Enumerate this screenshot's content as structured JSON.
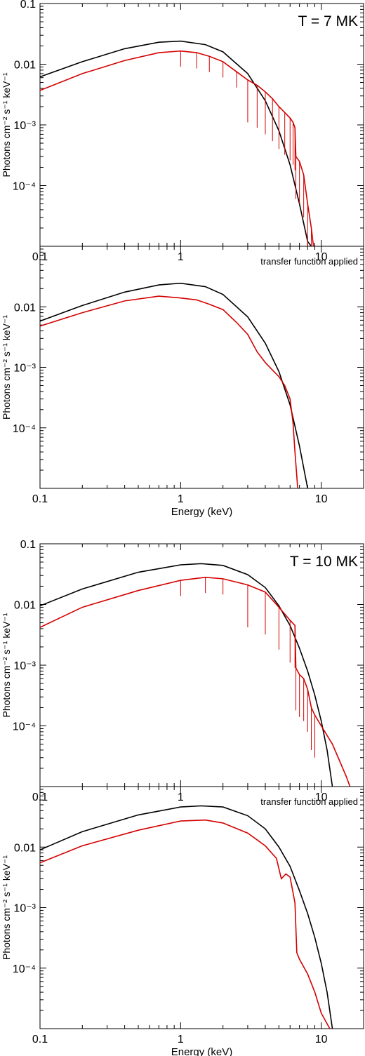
{
  "figure": {
    "xlabel": "Energy (keV)",
    "ylabel": "Photons cm⁻² s⁻¹ keV⁻¹",
    "colors": {
      "model": "#000000",
      "spectrum": "#d40000"
    }
  },
  "chart_data": [
    {
      "type": "line",
      "scale": "log-log",
      "xlim": [
        0.1,
        20
      ],
      "ylim": [
        1e-05,
        0.1
      ],
      "xticks": [
        "0.1",
        "1",
        "10"
      ],
      "yticks": [
        "0.1",
        "0.01",
        "10⁻³",
        "10⁻⁴"
      ],
      "annotation": "T = 7 MK",
      "xlabel": "",
      "ylabel": "Photons cm⁻² s⁻¹ keV⁻¹",
      "lines": true,
      "series": [
        {
          "role": "model",
          "x": [
            0.1,
            0.2,
            0.4,
            0.7,
            1.0,
            1.5,
            2.0,
            3.0,
            4.0,
            5.0,
            6.0,
            7.0,
            8.0,
            8.5
          ],
          "y": [
            0.0062,
            0.011,
            0.018,
            0.023,
            0.024,
            0.021,
            0.016,
            0.007,
            0.0025,
            0.0008,
            0.00022,
            5e-05,
            1.2e-05,
            1e-05
          ]
        },
        {
          "role": "spectrum",
          "x": [
            0.1,
            0.2,
            0.4,
            0.7,
            1.0,
            1.3,
            1.6,
            2.0,
            2.5,
            3.0,
            3.5,
            4.0,
            4.5,
            5.0,
            5.5,
            6.0,
            6.3,
            6.5,
            6.6,
            7.0,
            7.5,
            8.0,
            8.5,
            8.8
          ],
          "y": [
            0.0037,
            0.007,
            0.0115,
            0.0155,
            0.0165,
            0.0155,
            0.0135,
            0.011,
            0.0075,
            0.0055,
            0.0045,
            0.0035,
            0.0027,
            0.002,
            0.0016,
            0.0013,
            0.0011,
            0.0009,
            0.0003,
            0.00025,
            0.00015,
            5e-05,
            2e-05,
            1e-05
          ]
        }
      ]
    },
    {
      "type": "line",
      "scale": "log-log",
      "xlim": [
        0.1,
        20
      ],
      "ylim": [
        1e-05,
        0.1
      ],
      "xticks": [
        "0.1",
        "1",
        "10"
      ],
      "yticks": [
        "0.01",
        "10⁻³",
        "10⁻⁴"
      ],
      "annotation": "transfer function applied",
      "xlabel": "Energy (keV)",
      "ylabel": "Photons cm⁻² s⁻¹ keV⁻¹",
      "lines": false,
      "series": [
        {
          "role": "model",
          "x": [
            0.1,
            0.2,
            0.4,
            0.7,
            1.0,
            1.5,
            2.0,
            3.0,
            4.0,
            5.0,
            6.0,
            7.0,
            8.0
          ],
          "y": [
            0.0058,
            0.0105,
            0.0175,
            0.023,
            0.0245,
            0.0215,
            0.016,
            0.0068,
            0.0025,
            0.00085,
            0.00024,
            5e-05,
            1e-05
          ]
        },
        {
          "role": "spectrum",
          "x": [
            0.1,
            0.2,
            0.4,
            0.7,
            1.0,
            1.3,
            1.6,
            2.0,
            2.5,
            3.0,
            3.5,
            4.0,
            4.5,
            5.0,
            5.5,
            6.0,
            6.3,
            6.5,
            6.8
          ],
          "y": [
            0.0048,
            0.008,
            0.0125,
            0.015,
            0.014,
            0.013,
            0.011,
            0.009,
            0.0055,
            0.0035,
            0.0018,
            0.0012,
            0.0009,
            0.0007,
            0.0005,
            0.0003,
            0.00012,
            4e-05,
            1e-05
          ]
        }
      ]
    },
    {
      "type": "line",
      "scale": "log-log",
      "xlim": [
        0.1,
        20
      ],
      "ylim": [
        1e-05,
        0.1
      ],
      "xticks": [
        "0.1",
        "1",
        "10"
      ],
      "yticks": [
        "0.1",
        "0.01",
        "10⁻³",
        "10⁻⁴"
      ],
      "annotation": "T = 10 MK",
      "xlabel": "",
      "ylabel": "Photons cm⁻² s⁻¹ keV⁻¹",
      "lines": true,
      "series": [
        {
          "role": "model",
          "x": [
            0.1,
            0.2,
            0.5,
            1.0,
            1.4,
            2.0,
            3.0,
            4.0,
            5.0,
            6.0,
            7.0,
            8.0,
            9.0,
            10.0,
            11.0,
            12.0
          ],
          "y": [
            0.0095,
            0.018,
            0.034,
            0.045,
            0.047,
            0.044,
            0.031,
            0.019,
            0.0095,
            0.0045,
            0.0019,
            0.0008,
            0.00032,
            0.00012,
            4e-05,
            1e-05
          ]
        },
        {
          "role": "spectrum",
          "x": [
            0.1,
            0.2,
            0.5,
            1.0,
            1.5,
            2.0,
            3.0,
            4.0,
            5.0,
            6.0,
            6.5,
            6.6,
            7.0,
            7.5,
            8.0,
            8.5,
            9.0,
            10.0,
            12.0,
            15.0,
            16.0
          ],
          "y": [
            0.0042,
            0.009,
            0.017,
            0.025,
            0.028,
            0.0265,
            0.021,
            0.016,
            0.009,
            0.0055,
            0.0045,
            0.0009,
            0.0007,
            0.0006,
            0.0004,
            0.0002,
            0.00015,
            0.0001,
            5e-05,
            1.5e-05,
            1e-05
          ]
        }
      ]
    },
    {
      "type": "line",
      "scale": "log-log",
      "xlim": [
        0.1,
        20
      ],
      "ylim": [
        1e-05,
        0.1
      ],
      "xticks": [
        "0.1",
        "1",
        "10"
      ],
      "yticks": [
        "0.01",
        "10⁻³",
        "10⁻⁴"
      ],
      "annotation": "transfer function applied",
      "xlabel": "Energy (keV)",
      "ylabel": "Photons cm⁻² s⁻¹ keV⁻¹",
      "lines": false,
      "series": [
        {
          "role": "model",
          "x": [
            0.1,
            0.2,
            0.5,
            1.0,
            1.4,
            2.0,
            3.0,
            4.0,
            5.0,
            6.0,
            7.0,
            8.0,
            9.0,
            10.0,
            11.0,
            12.0
          ],
          "y": [
            0.009,
            0.018,
            0.034,
            0.046,
            0.048,
            0.046,
            0.033,
            0.02,
            0.01,
            0.0048,
            0.0019,
            0.0008,
            0.00032,
            0.00012,
            4e-05,
            1e-05
          ]
        },
        {
          "role": "spectrum",
          "x": [
            0.1,
            0.2,
            0.5,
            1.0,
            1.5,
            2.0,
            3.0,
            4.0,
            4.8,
            5.2,
            5.6,
            6.0,
            6.5,
            6.7,
            7.0,
            8.0,
            9.0,
            10.0,
            11.5
          ],
          "y": [
            0.0055,
            0.0105,
            0.019,
            0.027,
            0.028,
            0.025,
            0.017,
            0.0105,
            0.0065,
            0.003,
            0.0036,
            0.0032,
            0.0012,
            0.00018,
            0.00014,
            8e-05,
            4e-05,
            1.8e-05,
            1e-05
          ]
        }
      ]
    }
  ]
}
